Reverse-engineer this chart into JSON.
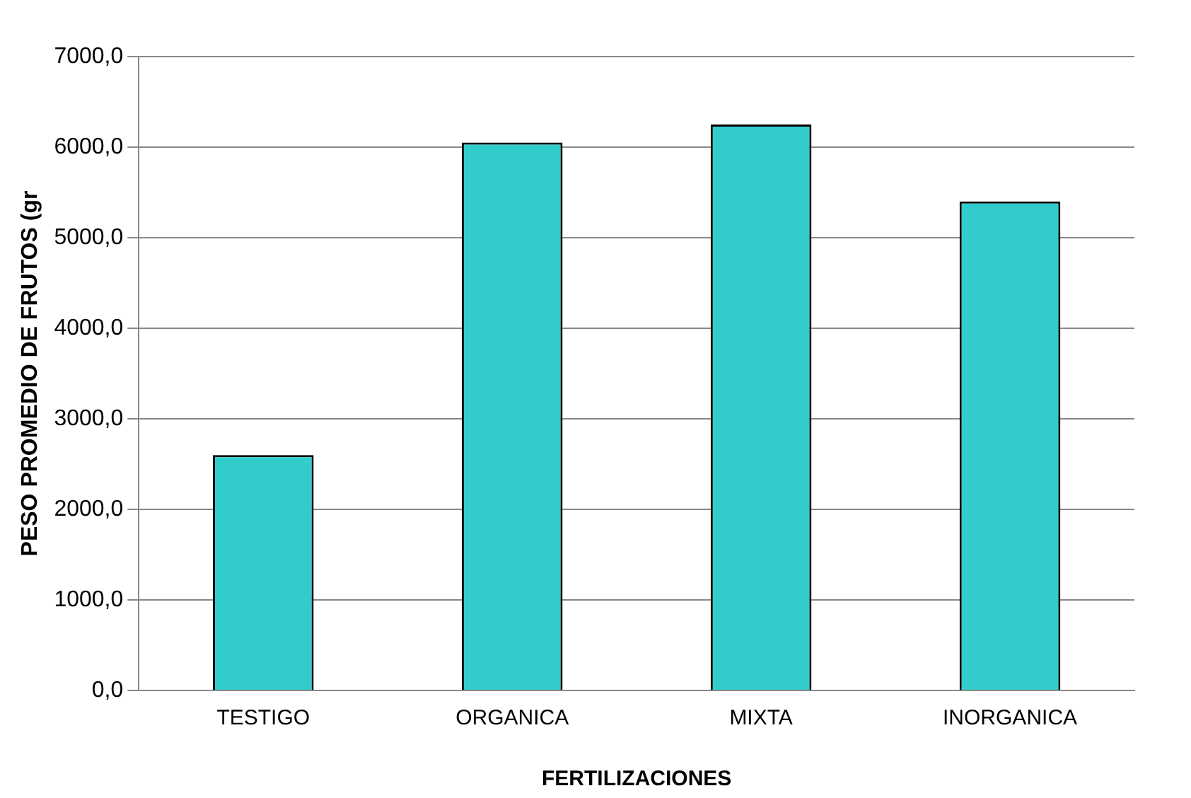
{
  "chart_data": {
    "type": "bar",
    "xlabel": "FERTILIZACIONES",
    "ylabel": "PESO PROMEDIO DE FRUTOS (gr",
    "categories": [
      "TESTIGO",
      "ORGANICA",
      "MIXTA",
      "INORGANICA"
    ],
    "values": [
      2600,
      6050,
      6250,
      5400
    ],
    "color": "#33cccc",
    "ylim": [
      0,
      7000
    ],
    "yticks": [
      {
        "value": 0,
        "label": "0,0"
      },
      {
        "value": 1000,
        "label": "1000,0"
      },
      {
        "value": 2000,
        "label": "2000,0"
      },
      {
        "value": 3000,
        "label": "3000,0"
      },
      {
        "value": 4000,
        "label": "4000,0"
      },
      {
        "value": 5000,
        "label": "5000,0"
      },
      {
        "value": 6000,
        "label": "6000,0"
      },
      {
        "value": 7000,
        "label": "7000,0"
      }
    ],
    "grid": "y",
    "legend": false
  }
}
